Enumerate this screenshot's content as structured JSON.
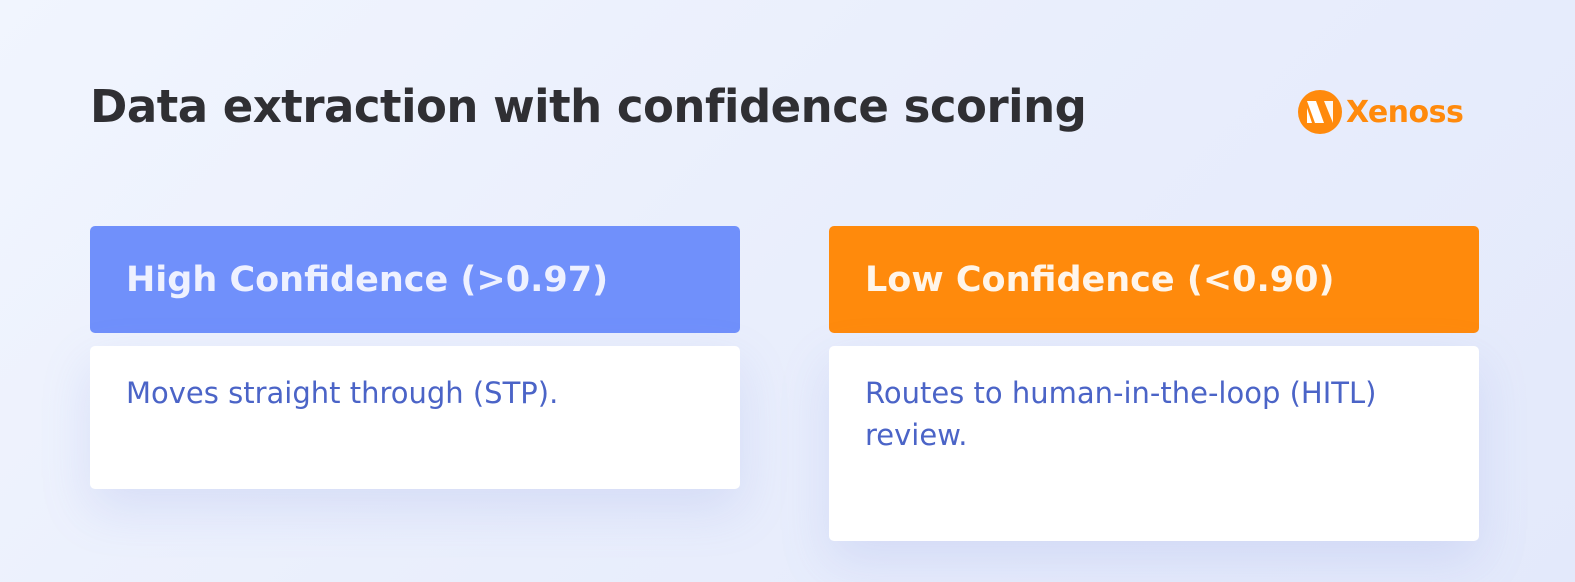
{
  "title": "Data extraction with confidence scoring",
  "logo": {
    "text": "Xenoss",
    "color": "#ff8a0c"
  },
  "cards": [
    {
      "heading": "High Confidence (>0.97)",
      "body": "Moves straight through (STP).",
      "color": "#7090fb"
    },
    {
      "heading": "Low Confidence (<0.90)",
      "body": "Routes to human-in-the-loop (HITL) review.",
      "color": "#ff8a0c"
    }
  ]
}
